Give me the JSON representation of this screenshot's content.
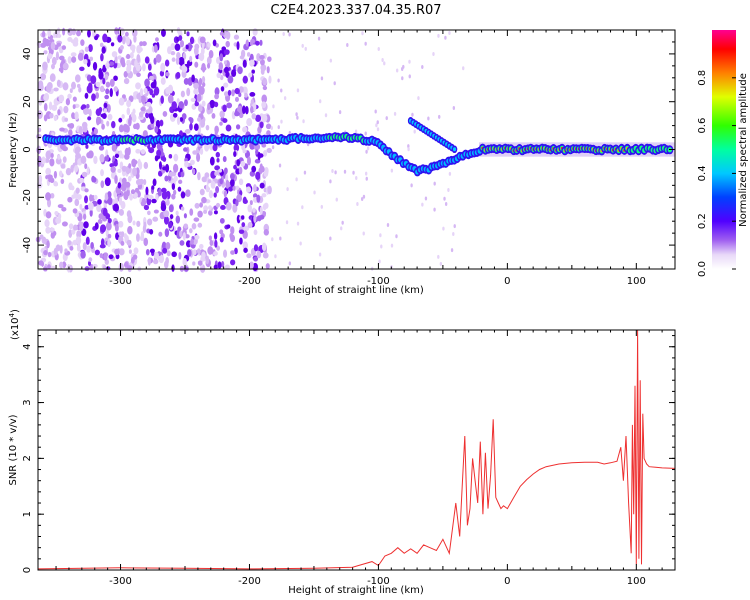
{
  "title": "C2E4.2023.337.04.35.R07",
  "chart_data": [
    {
      "type": "heatmap",
      "xlabel": "Height of straight line (km)",
      "ylabel": "Frequency (Hz)",
      "xlim": [
        -364,
        130
      ],
      "ylim": [
        -50,
        50
      ],
      "xticks": [
        "-300",
        "-200",
        "-100",
        "0",
        "100"
      ],
      "yticks": [
        "-40",
        "-20",
        "0",
        "20",
        "40"
      ],
      "colorbar": {
        "label": "Normalized spectral amplitude",
        "range": [
          0.0,
          1.0
        ],
        "ticks": [
          "0.0",
          "0.2",
          "0.4",
          "0.6",
          "0.8"
        ]
      },
      "ridge": {
        "x": [
          -360,
          -300,
          -250,
          -200,
          -180,
          -150,
          -120,
          -100,
          -90,
          -80,
          -70,
          -60,
          -50,
          -40,
          -30,
          -20,
          0,
          50,
          100,
          130
        ],
        "y": [
          4,
          4,
          4,
          4,
          4,
          5,
          5,
          3,
          -2,
          -6,
          -9,
          -8,
          -6,
          -4,
          -2,
          0,
          0,
          0,
          0,
          0
        ]
      }
    },
    {
      "type": "line",
      "xlabel": "Height of straight line (km)",
      "ylabel": "SNR (10 * v/v)",
      "multiplier": "(x10",
      "multiplier_exp": "4",
      "multiplier_close": ")",
      "xlim": [
        -364,
        130
      ],
      "ylim": [
        0,
        4.3
      ],
      "xticks": [
        "-300",
        "-200",
        "-100",
        "0",
        "100"
      ],
      "yticks": [
        "0",
        "1",
        "2",
        "3",
        "4"
      ],
      "color": "#ee3030",
      "series": [
        {
          "x": [
            -364,
            -300,
            -250,
            -200,
            -150,
            -120,
            -105,
            -100,
            -95,
            -90,
            -85,
            -80,
            -75,
            -70,
            -65,
            -60,
            -55,
            -50,
            -45,
            -40,
            -37,
            -35,
            -33,
            -31,
            -29,
            -27,
            -25,
            -23,
            -21,
            -19,
            -17,
            -15,
            -13,
            -11,
            -9,
            -7,
            -5,
            -3,
            0,
            5,
            10,
            15,
            20,
            25,
            30,
            40,
            50,
            60,
            70,
            75,
            80,
            85,
            88,
            90,
            92,
            94,
            96,
            97,
            98,
            99,
            100,
            101,
            102,
            103,
            104,
            105,
            106,
            108,
            110,
            115,
            120,
            130
          ],
          "y": [
            0.02,
            0.04,
            0.03,
            0.02,
            0.03,
            0.05,
            0.15,
            0.08,
            0.25,
            0.3,
            0.4,
            0.3,
            0.38,
            0.3,
            0.45,
            0.4,
            0.35,
            0.55,
            0.3,
            1.2,
            0.6,
            1.5,
            2.4,
            0.8,
            1.1,
            2.0,
            1.6,
            1.2,
            2.3,
            1.0,
            2.1,
            1.1,
            1.7,
            2.7,
            1.3,
            1.2,
            1.1,
            1.15,
            1.1,
            1.3,
            1.5,
            1.62,
            1.72,
            1.8,
            1.85,
            1.9,
            1.92,
            1.93,
            1.93,
            1.9,
            1.92,
            1.95,
            2.2,
            1.6,
            2.4,
            1.2,
            0.3,
            2.6,
            1.0,
            3.3,
            0.1,
            4.3,
            0.2,
            3.4,
            0.1,
            2.8,
            2.0,
            1.9,
            1.85,
            1.84,
            1.83,
            1.82
          ]
        }
      ]
    }
  ]
}
